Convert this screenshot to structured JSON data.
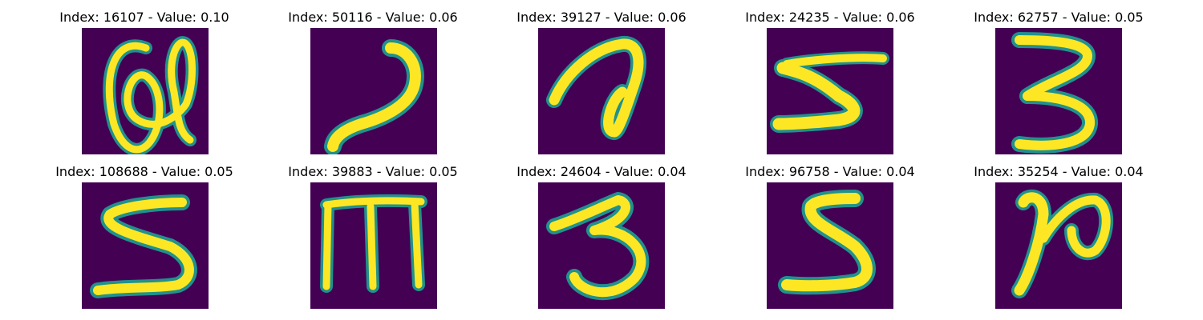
{
  "figure": {
    "panels": [
      {
        "title": "Index: 16107 - Value: 0.10",
        "glyph": "a-loop"
      },
      {
        "title": "Index: 50116 - Value: 0.06",
        "glyph": "2-hook"
      },
      {
        "title": "Index: 39127 - Value: 0.06",
        "glyph": "a-loop"
      },
      {
        "title": "Index: 24235 - Value: 0.06",
        "glyph": "5"
      },
      {
        "title": "Index: 62757 - Value: 0.05",
        "glyph": "3"
      },
      {
        "title": "Index: 108688 - Value: 0.05",
        "glyph": "5"
      },
      {
        "title": "Index: 39883 - Value: 0.05",
        "glyph": "m"
      },
      {
        "title": "Index: 24604 - Value: 0.04",
        "glyph": "3"
      },
      {
        "title": "Index: 96758 - Value: 0.04",
        "glyph": "5"
      },
      {
        "title": "Index: 35254 - Value: 0.04",
        "glyph": "n-loop"
      }
    ],
    "colors": {
      "background": "#440154",
      "stroke": "#fde725",
      "edge": "#21918c"
    }
  }
}
